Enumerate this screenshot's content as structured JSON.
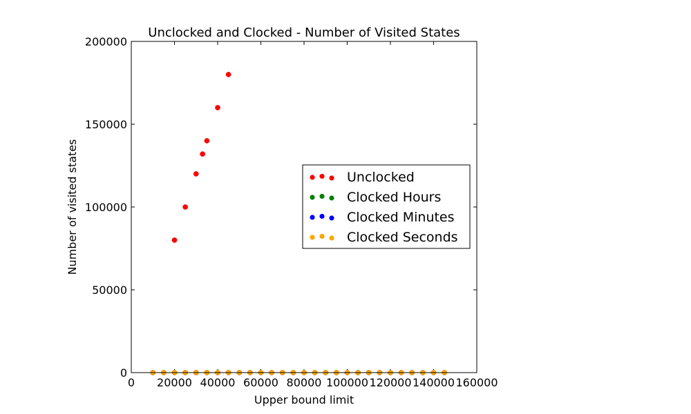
{
  "chart_data": {
    "type": "scatter",
    "title": "Unclocked and Clocked - Number of Visited States",
    "xlabel": "Upper bound limit",
    "ylabel": "Number of visited states",
    "xlim": [
      0,
      160000
    ],
    "ylim": [
      0,
      200000
    ],
    "xticks": [
      0,
      20000,
      40000,
      60000,
      80000,
      100000,
      120000,
      140000,
      160000
    ],
    "yticks": [
      0,
      50000,
      100000,
      150000,
      200000
    ],
    "legend_position": "center-right",
    "grid": false,
    "series": [
      {
        "name": "Unclocked",
        "color": "#ff0000",
        "points": [
          {
            "x": 20000,
            "y": 80000
          },
          {
            "x": 25000,
            "y": 100000
          },
          {
            "x": 30000,
            "y": 120000
          },
          {
            "x": 33000,
            "y": 132000
          },
          {
            "x": 35000,
            "y": 140000
          },
          {
            "x": 40000,
            "y": 160000
          },
          {
            "x": 45000,
            "y": 180000
          }
        ]
      },
      {
        "name": "Clocked Hours",
        "color": "#008000",
        "points": [
          {
            "x": 10000,
            "y": 0
          },
          {
            "x": 15000,
            "y": 0
          },
          {
            "x": 20000,
            "y": 0
          },
          {
            "x": 25000,
            "y": 0
          },
          {
            "x": 30000,
            "y": 0
          },
          {
            "x": 35000,
            "y": 0
          },
          {
            "x": 40000,
            "y": 0
          },
          {
            "x": 45000,
            "y": 0
          },
          {
            "x": 50000,
            "y": 0
          },
          {
            "x": 55000,
            "y": 0
          },
          {
            "x": 60000,
            "y": 0
          },
          {
            "x": 65000,
            "y": 0
          },
          {
            "x": 70000,
            "y": 0
          },
          {
            "x": 75000,
            "y": 0
          },
          {
            "x": 80000,
            "y": 0
          },
          {
            "x": 85000,
            "y": 0
          },
          {
            "x": 90000,
            "y": 0
          },
          {
            "x": 95000,
            "y": 0
          },
          {
            "x": 100000,
            "y": 0
          },
          {
            "x": 105000,
            "y": 0
          },
          {
            "x": 110000,
            "y": 0
          },
          {
            "x": 115000,
            "y": 0
          },
          {
            "x": 120000,
            "y": 0
          },
          {
            "x": 125000,
            "y": 0
          },
          {
            "x": 130000,
            "y": 0
          },
          {
            "x": 135000,
            "y": 0
          },
          {
            "x": 140000,
            "y": 0
          },
          {
            "x": 145000,
            "y": 0
          }
        ]
      },
      {
        "name": "Clocked Minutes",
        "color": "#0000ff",
        "points": [
          {
            "x": 10000,
            "y": 0
          },
          {
            "x": 15000,
            "y": 0
          },
          {
            "x": 20000,
            "y": 0
          },
          {
            "x": 25000,
            "y": 0
          },
          {
            "x": 30000,
            "y": 0
          },
          {
            "x": 35000,
            "y": 0
          },
          {
            "x": 40000,
            "y": 0
          },
          {
            "x": 45000,
            "y": 0
          },
          {
            "x": 50000,
            "y": 0
          },
          {
            "x": 55000,
            "y": 0
          },
          {
            "x": 60000,
            "y": 0
          },
          {
            "x": 65000,
            "y": 0
          },
          {
            "x": 70000,
            "y": 0
          },
          {
            "x": 75000,
            "y": 0
          },
          {
            "x": 80000,
            "y": 0
          },
          {
            "x": 85000,
            "y": 0
          },
          {
            "x": 90000,
            "y": 0
          },
          {
            "x": 95000,
            "y": 0
          },
          {
            "x": 100000,
            "y": 0
          },
          {
            "x": 105000,
            "y": 0
          },
          {
            "x": 110000,
            "y": 0
          },
          {
            "x": 115000,
            "y": 0
          },
          {
            "x": 120000,
            "y": 0
          },
          {
            "x": 125000,
            "y": 0
          },
          {
            "x": 130000,
            "y": 0
          },
          {
            "x": 135000,
            "y": 0
          },
          {
            "x": 140000,
            "y": 0
          },
          {
            "x": 145000,
            "y": 0
          }
        ]
      },
      {
        "name": "Clocked Seconds",
        "color": "#ffa500",
        "points": [
          {
            "x": 10000,
            "y": 0
          },
          {
            "x": 15000,
            "y": 0
          },
          {
            "x": 20000,
            "y": 0
          },
          {
            "x": 25000,
            "y": 0
          },
          {
            "x": 30000,
            "y": 0
          },
          {
            "x": 35000,
            "y": 0
          },
          {
            "x": 40000,
            "y": 0
          },
          {
            "x": 45000,
            "y": 0
          },
          {
            "x": 50000,
            "y": 0
          },
          {
            "x": 55000,
            "y": 0
          },
          {
            "x": 60000,
            "y": 0
          },
          {
            "x": 65000,
            "y": 0
          },
          {
            "x": 70000,
            "y": 0
          },
          {
            "x": 75000,
            "y": 0
          },
          {
            "x": 80000,
            "y": 0
          },
          {
            "x": 85000,
            "y": 0
          },
          {
            "x": 90000,
            "y": 0
          },
          {
            "x": 95000,
            "y": 0
          },
          {
            "x": 100000,
            "y": 0
          },
          {
            "x": 105000,
            "y": 0
          },
          {
            "x": 110000,
            "y": 0
          },
          {
            "x": 115000,
            "y": 0
          },
          {
            "x": 120000,
            "y": 0
          },
          {
            "x": 125000,
            "y": 0
          },
          {
            "x": 130000,
            "y": 0
          },
          {
            "x": 135000,
            "y": 0
          },
          {
            "x": 140000,
            "y": 0
          },
          {
            "x": 145000,
            "y": 0
          }
        ]
      }
    ]
  }
}
